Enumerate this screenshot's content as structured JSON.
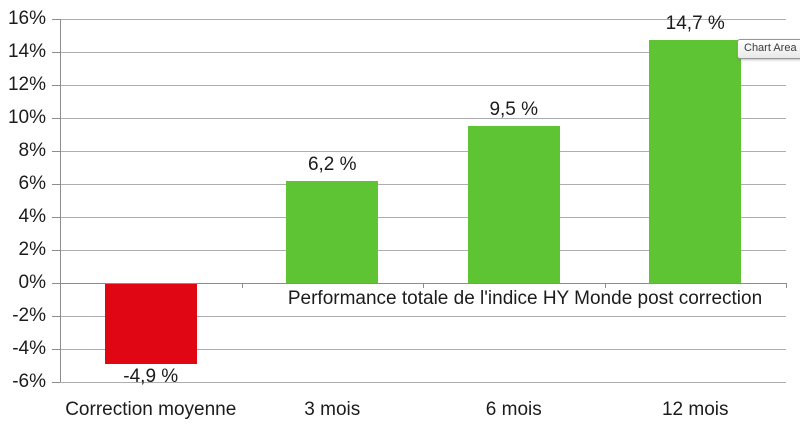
{
  "chart_data": {
    "type": "bar",
    "title": "Performance totale de l'indice HY Monde post correction",
    "categories": [
      "Correction moyenne",
      "3 mois",
      "6 mois",
      "12 mois"
    ],
    "values": [
      -4.9,
      6.2,
      9.5,
      14.7
    ],
    "value_labels": [
      "-4,9 %",
      "6,2 %",
      "9,5 %",
      "14,7 %"
    ],
    "bar_colors": [
      "#e00613",
      "#5fc434",
      "#5fc434",
      "#5fc434"
    ],
    "ylim": [
      -6,
      16
    ],
    "ytick_step": 2,
    "ytick_labels": [
      "16%",
      "14%",
      "12%",
      "10%",
      "8%",
      "6%",
      "4%",
      "2%",
      "0%",
      "-2%",
      "-4%",
      "-6%"
    ],
    "grid": true,
    "legend": "none",
    "negative_color": "#e00613",
    "positive_color": "#5fc434"
  },
  "overlay": {
    "tooltip_label": "Chart Area"
  },
  "colors": {
    "gridline": "#aeaeae",
    "axis": "#8c8c8c",
    "text": "#1c1c1c",
    "background": "#ffffff"
  }
}
